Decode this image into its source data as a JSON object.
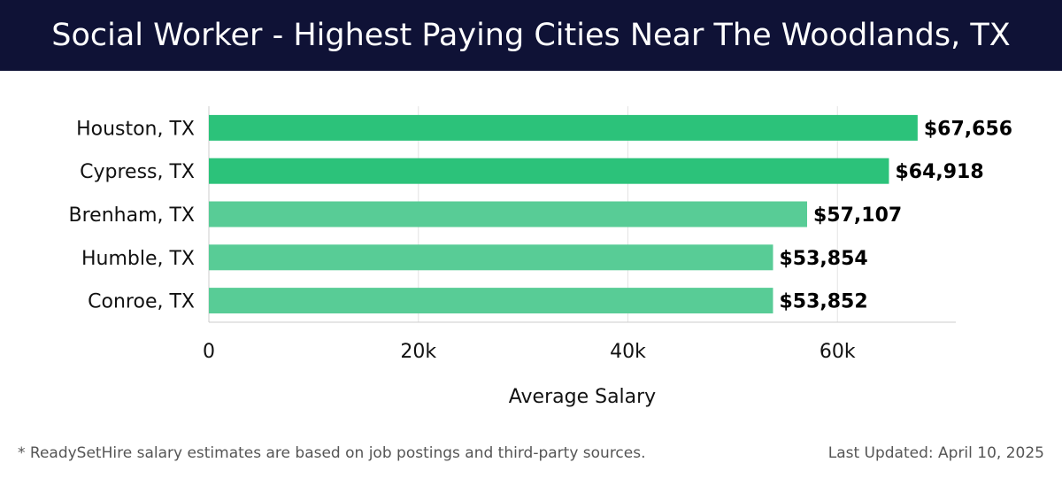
{
  "header": {
    "title": "Social Worker - Highest Paying Cities Near The Woodlands, TX"
  },
  "chart_data": {
    "type": "bar",
    "orientation": "horizontal",
    "categories": [
      "Houston, TX",
      "Cypress, TX",
      "Brenham, TX",
      "Humble, TX",
      "Conroe, TX"
    ],
    "values": [
      67656,
      64918,
      57107,
      53854,
      53852
    ],
    "value_labels": [
      "$67,656",
      "$64,918",
      "$57,107",
      "$53,854",
      "$53,852"
    ],
    "xlabel": "Average Salary",
    "ylabel": "",
    "xlim": [
      0,
      71300
    ],
    "x_ticks": [
      0,
      20000,
      40000,
      60000
    ],
    "x_tick_labels": [
      "0",
      "20k",
      "40k",
      "60k"
    ],
    "grid": true,
    "colors": {
      "top": "#2cc27a",
      "rest": "#58cc96",
      "grid": "#e4e4e4",
      "axis": "#cccccc"
    }
  },
  "footer": {
    "note": "* ReadySetHire salary estimates are based on job postings and third-party sources.",
    "updated": "Last Updated: April 10, 2025"
  }
}
